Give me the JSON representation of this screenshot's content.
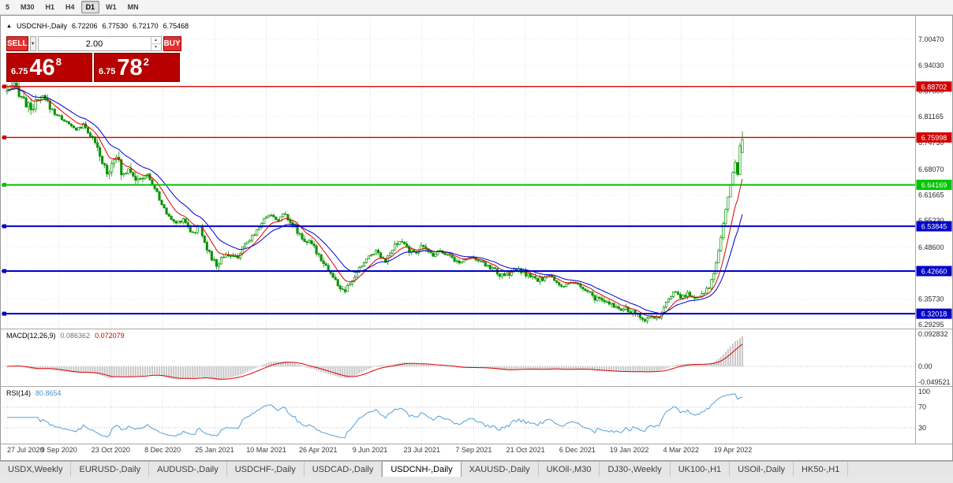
{
  "toolbar": {
    "timeframes": [
      "5",
      "M30",
      "H1",
      "H4",
      "D1",
      "W1",
      "MN"
    ],
    "active_timeframe": "D1"
  },
  "chart_header": {
    "symbol": "USDCNH-,Daily",
    "open": "6.72206",
    "high": "6.77530",
    "low": "6.72170",
    "close": "6.75468"
  },
  "icons": {
    "panel_collapse": "▲",
    "dropdown_arrow": "▼",
    "spinner_up": "▲",
    "spinner_down": "▼"
  },
  "trade_panel": {
    "sell_label": "SELL",
    "buy_label": "BUY",
    "volume": "2.00",
    "sell_price": {
      "prefix": "6.75",
      "big": "46",
      "sup": "8"
    },
    "buy_price": {
      "prefix": "6.75",
      "big": "78",
      "sup": "2"
    }
  },
  "price_axis": {
    "ticks": [
      "7.00470",
      "6.94030",
      "6.87600",
      "6.81165",
      "6.74730",
      "6.68070",
      "6.61665",
      "6.55230",
      "6.48600",
      "6.42160",
      "6.35730",
      "6.29295"
    ]
  },
  "levels": [
    {
      "value": 6.88702,
      "label": "6.88702",
      "color": "#d00000",
      "width": 1.4
    },
    {
      "value": 6.75998,
      "label": "6.75998",
      "color": "#d00000",
      "width": 1.4
    },
    {
      "value": 6.64169,
      "label": "6.64169",
      "color": "#00c400",
      "width": 2
    },
    {
      "value": 6.53845,
      "label": "6.53845",
      "color": "#0000c8",
      "width": 2
    },
    {
      "value": 6.4266,
      "label": "6.42660",
      "color": "#0000c8",
      "width": 2
    },
    {
      "value": 6.32018,
      "label": "6.32018",
      "color": "#0000c8",
      "width": 2
    }
  ],
  "x_axis": {
    "dates": [
      "27 Jul 2020",
      "9 Sep 2020",
      "23 Oct 2020",
      "8 Dec 2020",
      "25 Jan 2021",
      "10 Mar 2021",
      "26 Apr 2021",
      "9 Jun 2021",
      "23 Jul 2021",
      "7 Sep 2021",
      "21 Oct 2021",
      "6 Dec 2021",
      "19 Jan 2022",
      "4 Mar 2022",
      "19 Apr 2022"
    ]
  },
  "macd_panel": {
    "label": "MACD(12,26,9)",
    "value_main": "0.086362",
    "value_signal": "0.072079",
    "axis_ticks": [
      {
        "label": "0.092832",
        "value": 0.092832
      },
      {
        "label": "0.00",
        "value": 0
      },
      {
        "label": "-0.049521",
        "value": -0.049521
      }
    ]
  },
  "rsi_panel": {
    "label": "RSI(14)",
    "value": "80.8654",
    "levels": [
      {
        "label": "100",
        "value": 100,
        "dotted": false
      },
      {
        "label": "70",
        "value": 70,
        "dotted": true
      },
      {
        "label": "30",
        "value": 30,
        "dotted": true
      }
    ]
  },
  "tabs": {
    "items": [
      "USDX,Weekly",
      "EURUSD-,Daily",
      "AUDUSD-,Daily",
      "USDCHF-,Daily",
      "USDCAD-,Daily",
      "USDCNH-,Daily",
      "XAUUSD-,Daily",
      "UKOil-,M30",
      "DJ30-,Weekly",
      "UK100-,H1",
      "USOil-,Daily",
      "HK50-,H1"
    ],
    "active": "USDCNH-,Daily"
  },
  "colors": {
    "candle": "#089400",
    "bull_fill": "#ffffff",
    "ma_fast": "#e00000",
    "ma_slow": "#0000d0",
    "macd_hist": "#c8c8c8",
    "macd_signal": "#e00000",
    "rsi_line": "#559fd6",
    "grid": "#dcdcdc",
    "grid_h": "#ededed",
    "axis_text": "#2a2a2a",
    "separator": "#a8a8a8"
  },
  "chart_data": {
    "type": "candlestick",
    "symbol": "USDCNH-",
    "timeframe": "Daily",
    "price_range_visible": [
      6.29295,
      7.0047
    ],
    "dates_visible": [
      "27 Jul 2020",
      "19 Apr 2022"
    ],
    "last_ohlc": {
      "open": 6.72206,
      "high": 6.7753,
      "low": 6.7217,
      "close": 6.75468
    },
    "candle_count": 310,
    "close_anchors": [
      [
        0,
        6.878
      ],
      [
        0.012,
        6.886
      ],
      [
        0.03,
        6.832
      ],
      [
        0.05,
        6.858
      ],
      [
        0.065,
        6.82
      ],
      [
        0.078,
        6.802
      ],
      [
        0.092,
        6.78
      ],
      [
        0.105,
        6.79
      ],
      [
        0.118,
        6.752
      ],
      [
        0.128,
        6.7
      ],
      [
        0.138,
        6.672
      ],
      [
        0.148,
        6.728
      ],
      [
        0.156,
        6.662
      ],
      [
        0.166,
        6.69
      ],
      [
        0.178,
        6.648
      ],
      [
        0.19,
        6.668
      ],
      [
        0.202,
        6.628
      ],
      [
        0.215,
        6.575
      ],
      [
        0.228,
        6.545
      ],
      [
        0.24,
        6.558
      ],
      [
        0.252,
        6.52
      ],
      [
        0.262,
        6.538
      ],
      [
        0.275,
        6.468
      ],
      [
        0.285,
        6.44
      ],
      [
        0.297,
        6.472
      ],
      [
        0.31,
        6.456
      ],
      [
        0.325,
        6.492
      ],
      [
        0.34,
        6.53
      ],
      [
        0.355,
        6.57
      ],
      [
        0.368,
        6.554
      ],
      [
        0.378,
        6.57
      ],
      [
        0.39,
        6.54
      ],
      [
        0.402,
        6.508
      ],
      [
        0.415,
        6.49
      ],
      [
        0.43,
        6.452
      ],
      [
        0.445,
        6.405
      ],
      [
        0.458,
        6.372
      ],
      [
        0.468,
        6.398
      ],
      [
        0.478,
        6.43
      ],
      [
        0.49,
        6.46
      ],
      [
        0.502,
        6.478
      ],
      [
        0.515,
        6.452
      ],
      [
        0.527,
        6.488
      ],
      [
        0.538,
        6.5
      ],
      [
        0.55,
        6.472
      ],
      [
        0.565,
        6.486
      ],
      [
        0.578,
        6.468
      ],
      [
        0.59,
        6.48
      ],
      [
        0.602,
        6.464
      ],
      [
        0.615,
        6.446
      ],
      [
        0.63,
        6.466
      ],
      [
        0.645,
        6.446
      ],
      [
        0.66,
        6.434
      ],
      [
        0.675,
        6.41
      ],
      [
        0.69,
        6.43
      ],
      [
        0.705,
        6.42
      ],
      [
        0.72,
        6.402
      ],
      [
        0.737,
        6.415
      ],
      [
        0.755,
        6.388
      ],
      [
        0.772,
        6.398
      ],
      [
        0.79,
        6.372
      ],
      [
        0.806,
        6.352
      ],
      [
        0.822,
        6.344
      ],
      [
        0.84,
        6.33
      ],
      [
        0.856,
        6.318
      ],
      [
        0.868,
        6.306
      ],
      [
        0.878,
        6.316
      ],
      [
        0.886,
        6.304
      ],
      [
        0.896,
        6.345
      ],
      [
        0.906,
        6.376
      ],
      [
        0.916,
        6.36
      ],
      [
        0.926,
        6.372
      ],
      [
        0.936,
        6.358
      ],
      [
        0.946,
        6.372
      ],
      [
        0.954,
        6.388
      ],
      [
        0.962,
        6.424
      ],
      [
        0.97,
        6.5
      ],
      [
        0.978,
        6.588
      ],
      [
        0.985,
        6.652
      ],
      [
        0.99,
        6.702
      ],
      [
        0.993,
        6.655
      ],
      [
        0.9965,
        6.738
      ],
      [
        1,
        6.755
      ]
    ],
    "indicators": [
      "MA fast (red)",
      "MA slow (blue)",
      "MACD(12,26,9)",
      "RSI(14)"
    ]
  }
}
